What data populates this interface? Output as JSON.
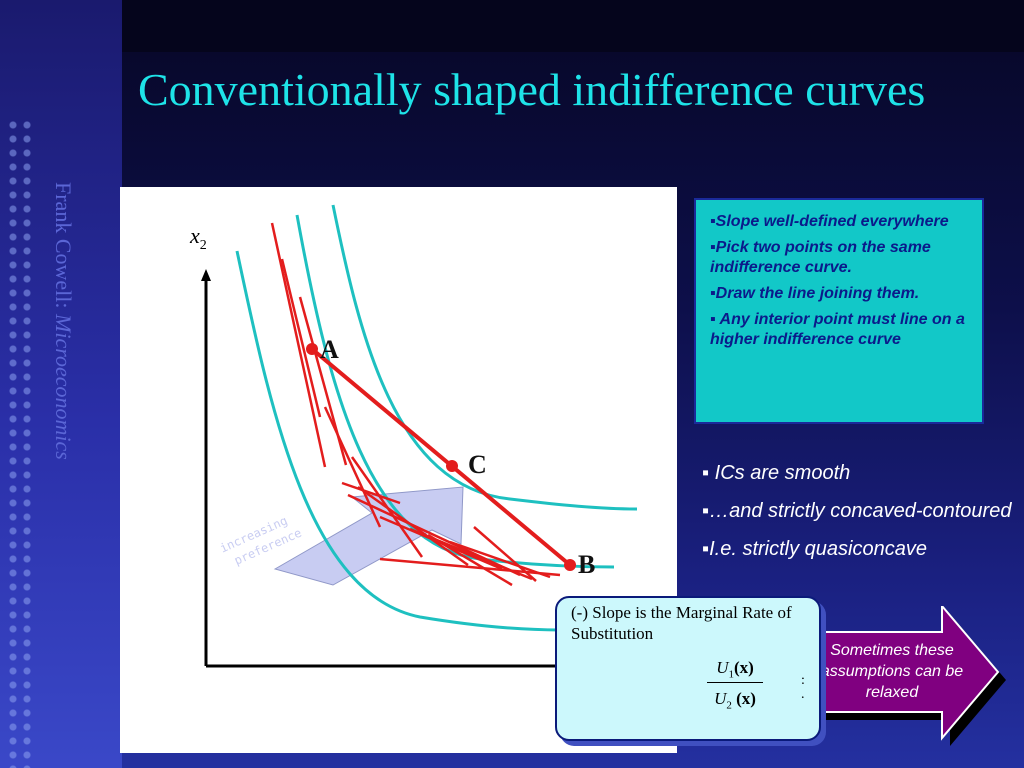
{
  "slide": {
    "title": "Conventionally shaped indifference curves",
    "author": "Frank Cowell:",
    "book": "Microeconomics"
  },
  "diagram": {
    "axis_label_base": "x",
    "axis_label_sub": "2",
    "arrow_label_line1": "increasing",
    "arrow_label_line2": "preference",
    "points": [
      {
        "label": "A"
      },
      {
        "label": "C"
      },
      {
        "label": "B"
      }
    ],
    "colors": {
      "curve": "#1ec0c0",
      "line": "#e31d1d",
      "arrow_fill": "#c8ccf2",
      "axis": "#000000"
    }
  },
  "info_box": {
    "items": [
      "▪Slope well-defined everywhere",
      "▪Pick two points on the same indifference curve.",
      "▪Draw the line joining them.",
      "▪ Any interior point must line on a  higher indifference curve"
    ]
  },
  "bullets": [
    "▪ ICs are smooth",
    "▪…and strictly concaved-contoured",
    "▪I.e. strictly quasiconcave"
  ],
  "arrow_callout": {
    "text": "Sometimes these assumptions can be relaxed"
  },
  "mrs_box": {
    "line": "(-) Slope is the Marginal Rate of Substitution",
    "num_base": "U",
    "num_sub": "1",
    "num_arg": "(x)",
    "den_base": "U",
    "den_sub": "2",
    "den_arg": " (x)",
    "trail": ":\n."
  }
}
